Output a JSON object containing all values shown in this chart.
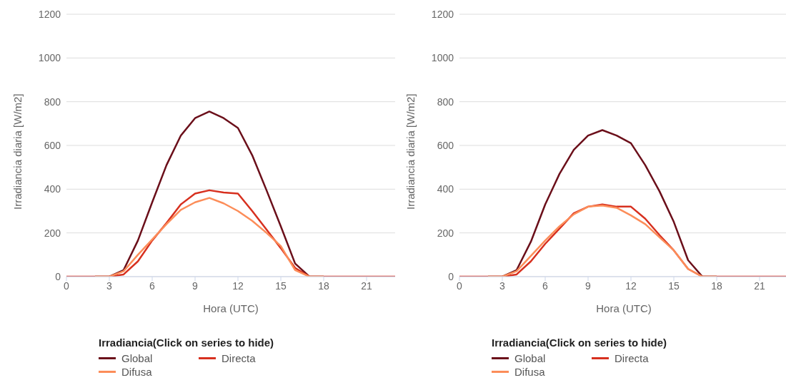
{
  "chart_data": [
    {
      "type": "line",
      "xlabel": "Hora (UTC)",
      "ylabel": "Irradiancia diaria [W/m2]",
      "legend_title": "Irradiancia(Click on series to hide)",
      "x": [
        0,
        1,
        2,
        3,
        4,
        5,
        6,
        7,
        8,
        9,
        10,
        11,
        12,
        13,
        14,
        15,
        16,
        17,
        18,
        19,
        20,
        21,
        22,
        23
      ],
      "xlim": [
        0,
        23
      ],
      "xticks": [
        0,
        3,
        6,
        9,
        12,
        15,
        18,
        21
      ],
      "ylim": [
        0,
        1200
      ],
      "yticks": [
        0,
        200,
        400,
        600,
        800,
        1000,
        1200
      ],
      "grid": "y",
      "legend": "bottom",
      "marker": "none",
      "line_style": "solid",
      "series": [
        {
          "name": "Global",
          "color": "#6b0f1a",
          "values": [
            null,
            null,
            0,
            0,
            30,
            165,
            340,
            510,
            645,
            725,
            755,
            725,
            680,
            555,
            395,
            230,
            60,
            0,
            0,
            null,
            null,
            null,
            null,
            null
          ]
        },
        {
          "name": "Directa",
          "color": "#d7301f",
          "values": [
            0,
            0,
            0,
            0,
            10,
            70,
            165,
            245,
            330,
            380,
            395,
            385,
            380,
            300,
            215,
            130,
            40,
            0,
            0,
            0,
            0,
            0,
            0,
            0
          ]
        },
        {
          "name": "Difusa",
          "color": "#fc8d59",
          "values": [
            null,
            null,
            0,
            0,
            25,
            100,
            170,
            240,
            305,
            340,
            360,
            335,
            300,
            255,
            200,
            140,
            30,
            0,
            0,
            null,
            null,
            null,
            null,
            null
          ]
        }
      ]
    },
    {
      "type": "line",
      "xlabel": "Hora (UTC)",
      "ylabel": "Irradiancia diaria [W/m2]",
      "legend_title": "Irradiancia(Click on series to hide)",
      "x": [
        0,
        1,
        2,
        3,
        4,
        5,
        6,
        7,
        8,
        9,
        10,
        11,
        12,
        13,
        14,
        15,
        16,
        17,
        18,
        19,
        20,
        21,
        22,
        23
      ],
      "xlim": [
        0,
        23
      ],
      "xticks": [
        0,
        3,
        6,
        9,
        12,
        15,
        18,
        21
      ],
      "ylim": [
        0,
        1200
      ],
      "yticks": [
        0,
        200,
        400,
        600,
        800,
        1000,
        1200
      ],
      "grid": "y",
      "legend": "bottom",
      "marker": "none",
      "line_style": "solid",
      "series": [
        {
          "name": "Global",
          "color": "#6b0f1a",
          "values": [
            null,
            null,
            0,
            0,
            30,
            160,
            330,
            470,
            580,
            645,
            670,
            645,
            610,
            510,
            390,
            250,
            75,
            0,
            0,
            null,
            null,
            null,
            null,
            null
          ]
        },
        {
          "name": "Directa",
          "color": "#d7301f",
          "values": [
            0,
            0,
            0,
            0,
            10,
            70,
            150,
            220,
            290,
            320,
            330,
            320,
            320,
            265,
            190,
            120,
            35,
            0,
            0,
            0,
            0,
            0,
            0,
            0
          ]
        },
        {
          "name": "Difusa",
          "color": "#fc8d59",
          "values": [
            null,
            null,
            0,
            0,
            25,
            95,
            165,
            230,
            285,
            320,
            325,
            315,
            280,
            240,
            180,
            120,
            35,
            0,
            0,
            null,
            null,
            null,
            null,
            null
          ]
        }
      ]
    }
  ]
}
